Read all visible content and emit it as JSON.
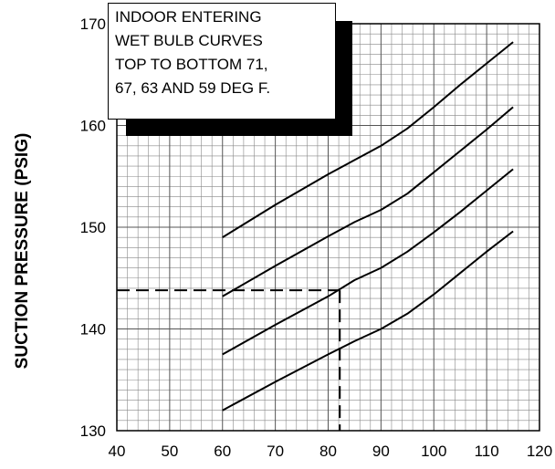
{
  "chart_data": {
    "type": "line",
    "title": "",
    "xlabel": "",
    "ylabel": "SUCTION PRESSURE (PSIG)",
    "xlim": [
      40,
      120
    ],
    "ylim": [
      130,
      170
    ],
    "x_ticks": [
      "40",
      "50",
      "60",
      "70",
      "80",
      "90",
      "100",
      "110",
      "120"
    ],
    "y_ticks": [
      "130",
      "140",
      "150",
      "160",
      "170"
    ],
    "grid": true,
    "x_minor_step": 2,
    "y_minor_step": 1,
    "series": [
      {
        "x": [
          60,
          70,
          80,
          85,
          90,
          95,
          100,
          105,
          110,
          115
        ],
        "y": [
          149.0,
          152.2,
          155.2,
          156.6,
          158.0,
          159.7,
          161.8,
          164.0,
          166.1,
          168.2
        ]
      },
      {
        "x": [
          60,
          70,
          80,
          85,
          90,
          95,
          100,
          105,
          110,
          115
        ],
        "y": [
          143.2,
          146.2,
          149.1,
          150.5,
          151.7,
          153.3,
          155.4,
          157.5,
          159.6,
          161.8
        ]
      },
      {
        "x": [
          60,
          70,
          80,
          85,
          90,
          95,
          100,
          105,
          110,
          115
        ],
        "y": [
          137.5,
          140.4,
          143.2,
          144.8,
          146.0,
          147.6,
          149.5,
          151.5,
          153.6,
          155.7
        ]
      },
      {
        "x": [
          60,
          70,
          80,
          85,
          90,
          95,
          100,
          105,
          110,
          115
        ],
        "y": [
          132.0,
          134.8,
          137.5,
          138.8,
          140.0,
          141.5,
          143.4,
          145.5,
          147.6,
          149.6
        ]
      }
    ],
    "reference_line": {
      "x": 82.2,
      "y": 143.8,
      "style": "dashed"
    },
    "annotation_lines": [
      "INDOOR ENTERING",
      "WET BULB CURVES",
      "TOP TO BOTTOM 71,",
      "67, 63 AND 59 DEG F."
    ],
    "colors": {
      "line": "#000000",
      "grid": "#888888",
      "background": "#ffffff"
    }
  }
}
